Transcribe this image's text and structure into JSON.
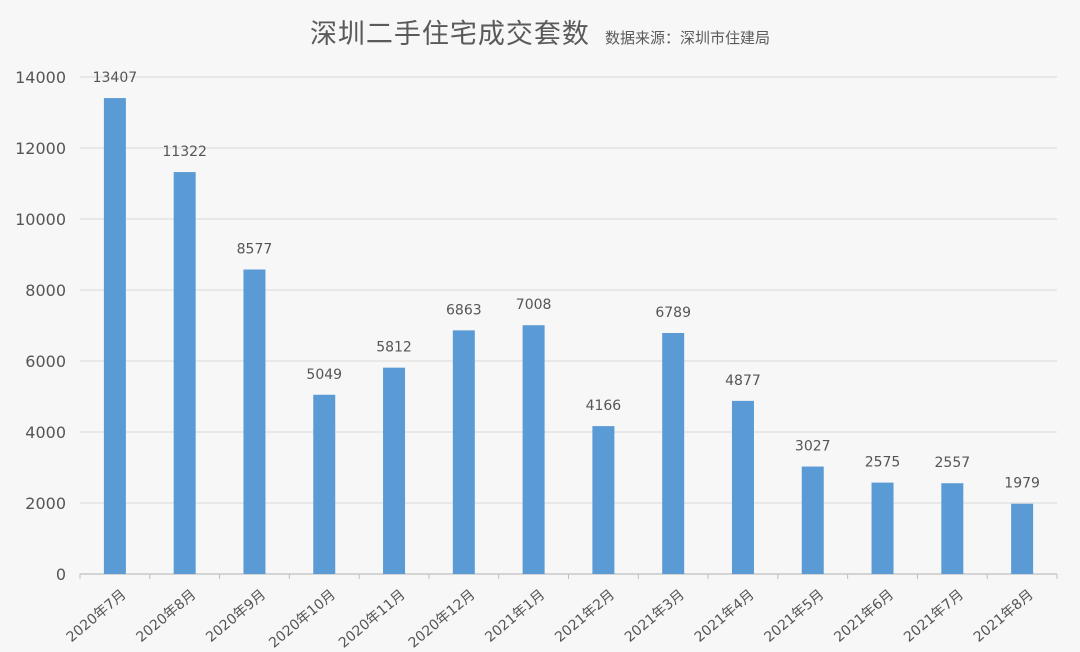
{
  "chart_data": {
    "type": "bar",
    "title": "深圳二手住宅成交套数",
    "subtitle": "数据来源：深圳市住建局",
    "categories": [
      "2020年7月",
      "2020年8月",
      "2020年9月",
      "2020年10月",
      "2020年11月",
      "2020年12月",
      "2021年1月",
      "2021年2月",
      "2021年3月",
      "2021年4月",
      "2021年5月",
      "2021年6月",
      "2021年7月",
      "2021年8月"
    ],
    "values": [
      13407,
      11322,
      8577,
      5049,
      5812,
      6863,
      7008,
      4166,
      6789,
      4877,
      3027,
      2575,
      2557,
      1979
    ],
    "ylim": [
      0,
      14000
    ],
    "yticks": [
      0,
      2000,
      4000,
      6000,
      8000,
      10000,
      12000,
      14000
    ],
    "grid": true,
    "bar_color": "#5b9bd5",
    "legend": "none"
  }
}
